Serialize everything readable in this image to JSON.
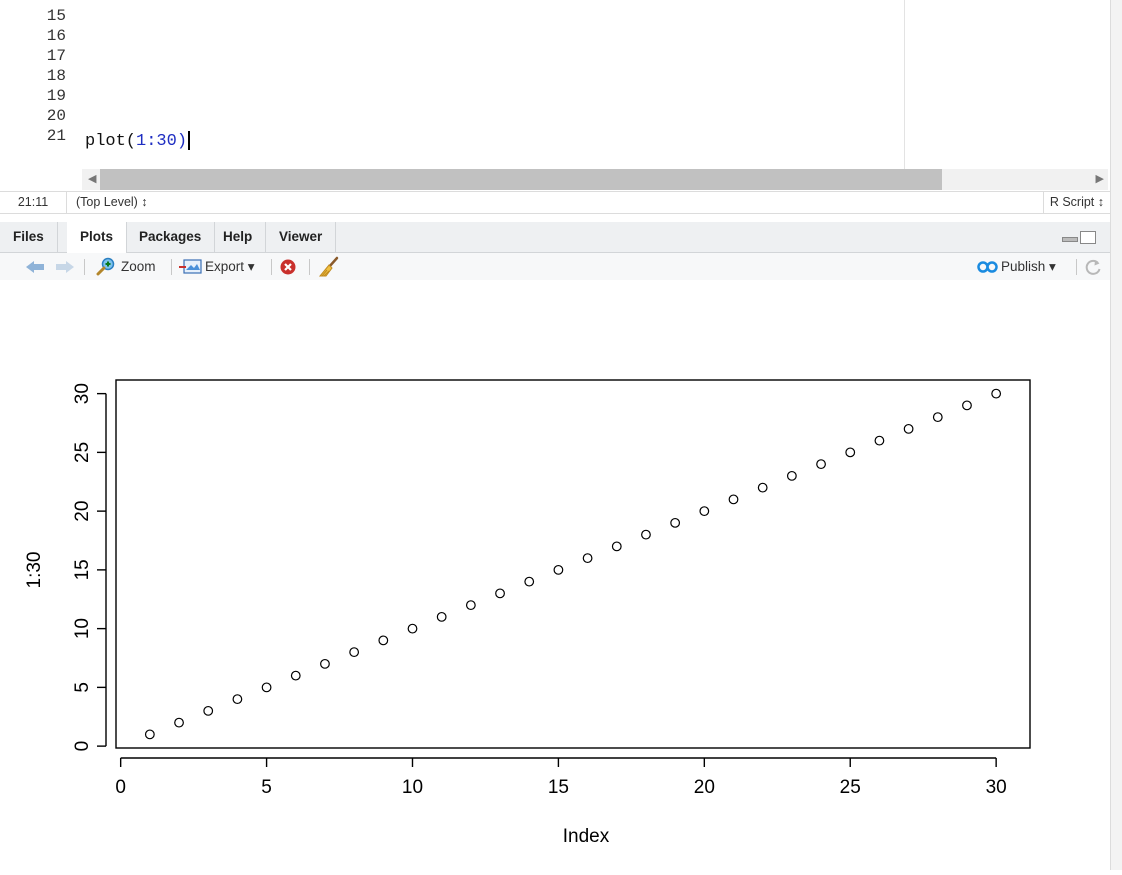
{
  "editor": {
    "line_numbers": [
      "15",
      "16",
      "17",
      "18",
      "19",
      "20",
      "21"
    ],
    "code_function": "plot(",
    "code_args": "1:30)",
    "status_position": "21:11",
    "status_scope": "(Top Level) ↕",
    "status_filetype": "R Script ↕"
  },
  "panes": {
    "tabs": [
      {
        "label": "Files"
      },
      {
        "label": "Plots"
      },
      {
        "label": "Packages"
      },
      {
        "label": "Help"
      },
      {
        "label": "Viewer"
      }
    ],
    "active_tab": "Plots",
    "toolbar": {
      "zoom_label": "Zoom",
      "export_label": "Export ▾",
      "publish_label": "Publish ▾"
    }
  },
  "colors": {
    "accent_blue": "#1f2ec2",
    "publish_blue": "#1a8be0",
    "stop_red": "#c9302c"
  },
  "chart_data": {
    "type": "scatter",
    "x": [
      1,
      2,
      3,
      4,
      5,
      6,
      7,
      8,
      9,
      10,
      11,
      12,
      13,
      14,
      15,
      16,
      17,
      18,
      19,
      20,
      21,
      22,
      23,
      24,
      25,
      26,
      27,
      28,
      29,
      30
    ],
    "y": [
      1,
      2,
      3,
      4,
      5,
      6,
      7,
      8,
      9,
      10,
      11,
      12,
      13,
      14,
      15,
      16,
      17,
      18,
      19,
      20,
      21,
      22,
      23,
      24,
      25,
      26,
      27,
      28,
      29,
      30
    ],
    "xlabel": "Index",
    "ylabel": "1:30",
    "xlim": [
      -0.16,
      31.16
    ],
    "ylim": [
      -0.16,
      31.16
    ],
    "xticks": [
      "0",
      "5",
      "10",
      "15",
      "20",
      "25",
      "30"
    ],
    "yticks": [
      "0",
      "5",
      "10",
      "15",
      "20",
      "25",
      "30"
    ],
    "grid": false,
    "marker": "open-circle"
  }
}
